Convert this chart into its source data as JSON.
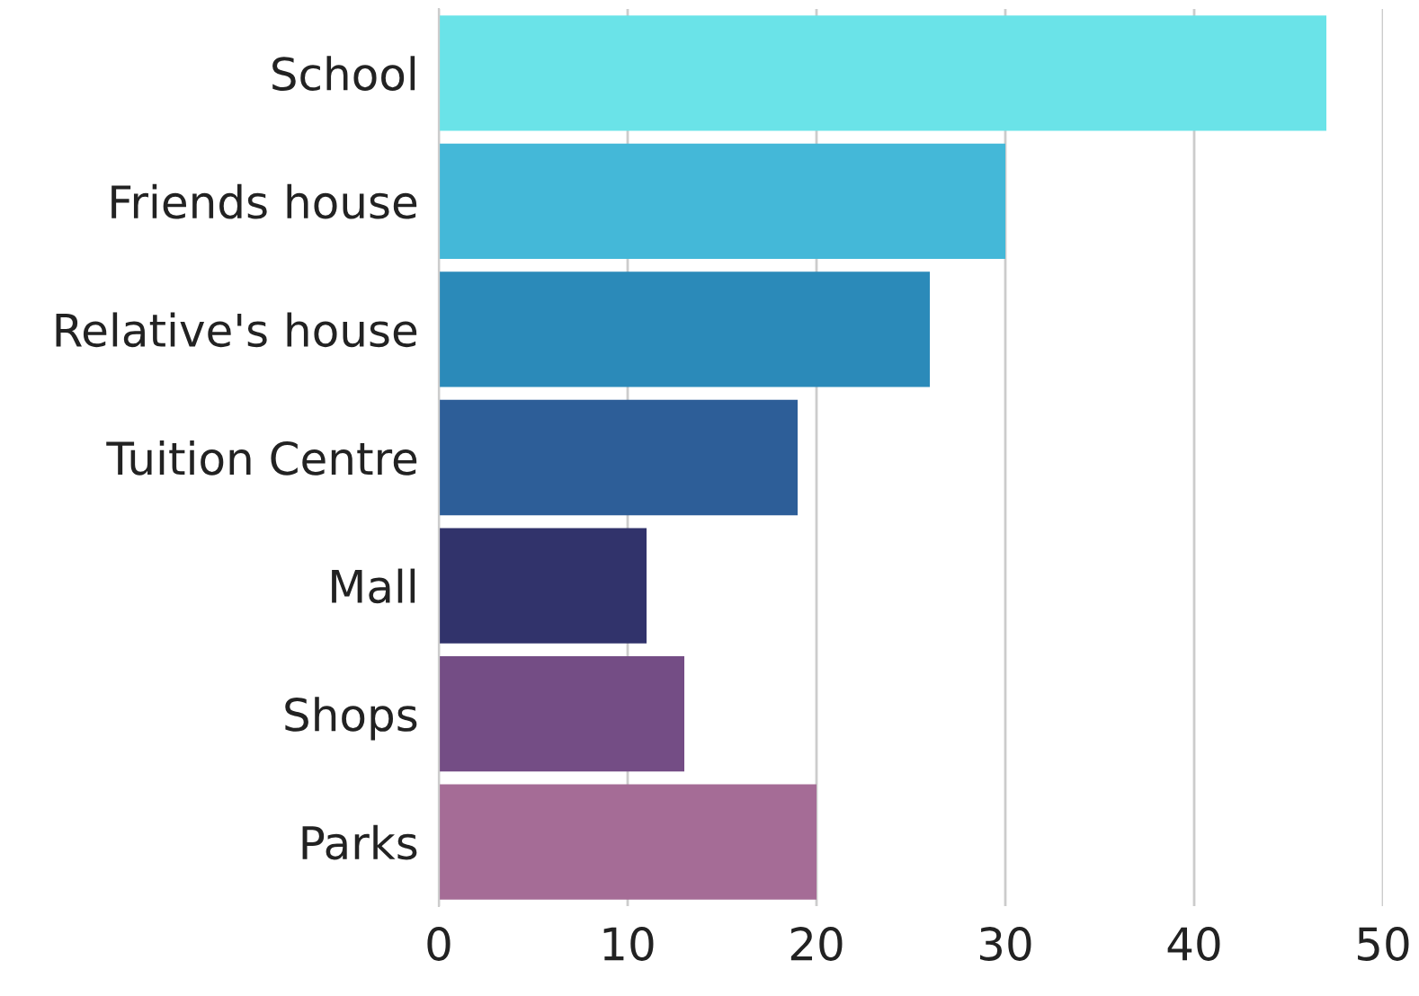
{
  "chart_data": {
    "type": "bar",
    "orientation": "horizontal",
    "categories": [
      "School",
      "Friends house",
      "Relative's house",
      "Tuition Centre",
      "Mall",
      "Shops",
      "Parks"
    ],
    "values": [
      47,
      30,
      26,
      19,
      11,
      13,
      20
    ],
    "colors": [
      "#6ae3e8",
      "#44b8d8",
      "#2b8ab9",
      "#2d5e98",
      "#31336b",
      "#744d85",
      "#a56c96"
    ],
    "xlim": [
      0,
      50
    ],
    "xticks": [
      0,
      10,
      20,
      30,
      40,
      50
    ],
    "grid": "x",
    "legend": false
  }
}
